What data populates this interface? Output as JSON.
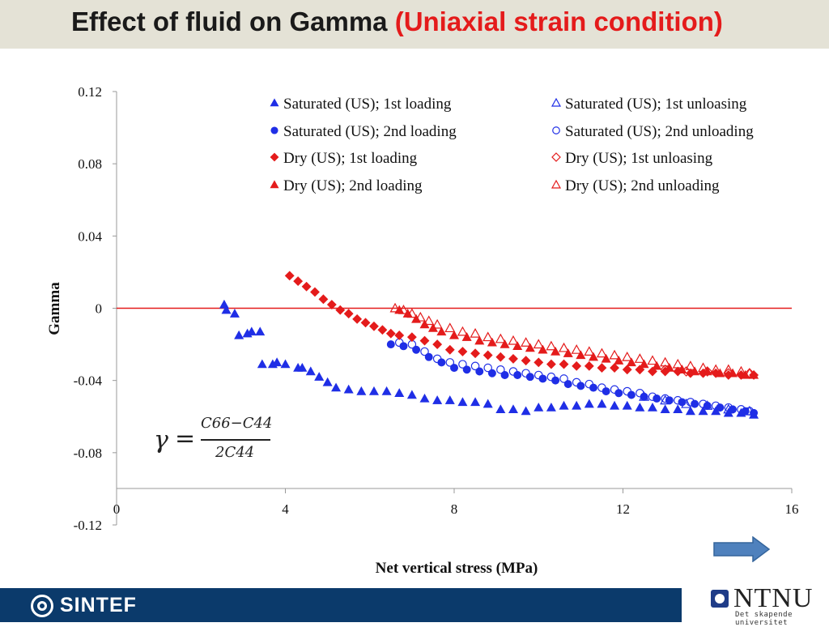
{
  "slide": {
    "title_main": "Effect of fluid on Gamma ",
    "title_sub": "(Uniaxial strain condition)"
  },
  "formula": {
    "lhs": "γ",
    "eq": "=",
    "numerator": "C66−C44",
    "denominator": "2C44"
  },
  "logos": {
    "sintef": "SINTEF",
    "ntnu_name": "NTNU",
    "ntnu_tagline": "Det skapende universitet"
  },
  "nav": {
    "icon": "right-arrow-icon",
    "color": "#4f81bd"
  },
  "chart_data": {
    "type": "scatter",
    "title": "",
    "xlabel": "Net vertical stress (MPa)",
    "ylabel": "Gamma",
    "xlim": [
      0,
      16
    ],
    "ylim": [
      -0.12,
      0.12
    ],
    "x_ticks": [
      0,
      4,
      8,
      12,
      16
    ],
    "x_tick_labels": [
      "0",
      "4",
      "8",
      "12",
      "16"
    ],
    "y_ticks": [
      0.12,
      0.08,
      0.04,
      0,
      -0.04,
      -0.08,
      -0.12
    ],
    "y_tick_labels": [
      "0.12",
      "0.08",
      "0.04",
      "0",
      "-0.04",
      "-0.08",
      "-0.12"
    ],
    "reference_line": {
      "y": 0,
      "color": "#e41b1b"
    },
    "grid": false,
    "legend_position": "top-right",
    "series": [
      {
        "name": "Saturated (US); 1st loading",
        "marker": "triangle",
        "filled": true,
        "color": "#1f2ee6",
        "points": [
          [
            2.55,
            0.002
          ],
          [
            2.6,
            -0.001
          ],
          [
            2.8,
            -0.003
          ],
          [
            2.9,
            -0.015
          ],
          [
            3.1,
            -0.014
          ],
          [
            3.2,
            -0.013
          ],
          [
            3.4,
            -0.013
          ],
          [
            3.45,
            -0.031
          ],
          [
            3.7,
            -0.031
          ],
          [
            3.8,
            -0.03
          ],
          [
            4.0,
            -0.031
          ],
          [
            4.3,
            -0.033
          ],
          [
            4.4,
            -0.033
          ],
          [
            4.6,
            -0.035
          ],
          [
            4.8,
            -0.038
          ],
          [
            5.0,
            -0.041
          ],
          [
            5.2,
            -0.044
          ],
          [
            5.5,
            -0.045
          ],
          [
            5.8,
            -0.046
          ],
          [
            6.1,
            -0.046
          ],
          [
            6.4,
            -0.046
          ],
          [
            6.7,
            -0.047
          ],
          [
            7.0,
            -0.048
          ],
          [
            7.3,
            -0.05
          ],
          [
            7.6,
            -0.051
          ],
          [
            7.9,
            -0.051
          ],
          [
            8.2,
            -0.052
          ],
          [
            8.5,
            -0.052
          ],
          [
            8.8,
            -0.053
          ],
          [
            9.1,
            -0.056
          ],
          [
            9.4,
            -0.056
          ],
          [
            9.7,
            -0.057
          ],
          [
            10.0,
            -0.055
          ],
          [
            10.3,
            -0.055
          ],
          [
            10.6,
            -0.054
          ],
          [
            10.9,
            -0.054
          ],
          [
            11.2,
            -0.053
          ],
          [
            11.5,
            -0.053
          ],
          [
            11.8,
            -0.054
          ],
          [
            12.1,
            -0.054
          ],
          [
            12.4,
            -0.055
          ],
          [
            12.7,
            -0.055
          ],
          [
            13.0,
            -0.056
          ],
          [
            13.3,
            -0.056
          ],
          [
            13.6,
            -0.057
          ],
          [
            13.9,
            -0.057
          ],
          [
            14.2,
            -0.057
          ],
          [
            14.5,
            -0.058
          ],
          [
            14.8,
            -0.058
          ],
          [
            15.1,
            -0.059
          ]
        ]
      },
      {
        "name": "Saturated (US); 2nd loading",
        "marker": "circle",
        "filled": true,
        "color": "#1f2ee6",
        "points": [
          [
            6.5,
            -0.02
          ],
          [
            6.8,
            -0.021
          ],
          [
            7.1,
            -0.023
          ],
          [
            7.4,
            -0.027
          ],
          [
            7.7,
            -0.03
          ],
          [
            8.0,
            -0.033
          ],
          [
            8.3,
            -0.034
          ],
          [
            8.6,
            -0.035
          ],
          [
            8.9,
            -0.036
          ],
          [
            9.2,
            -0.037
          ],
          [
            9.5,
            -0.037
          ],
          [
            9.8,
            -0.038
          ],
          [
            10.1,
            -0.039
          ],
          [
            10.4,
            -0.04
          ],
          [
            10.7,
            -0.042
          ],
          [
            11.0,
            -0.043
          ],
          [
            11.3,
            -0.044
          ],
          [
            11.6,
            -0.046
          ],
          [
            11.9,
            -0.047
          ],
          [
            12.2,
            -0.048
          ],
          [
            12.5,
            -0.049
          ],
          [
            12.8,
            -0.05
          ],
          [
            13.1,
            -0.051
          ],
          [
            13.4,
            -0.052
          ],
          [
            13.7,
            -0.053
          ],
          [
            14.0,
            -0.054
          ],
          [
            14.3,
            -0.055
          ],
          [
            14.6,
            -0.056
          ],
          [
            14.9,
            -0.057
          ],
          [
            15.1,
            -0.058
          ]
        ]
      },
      {
        "name": "Dry (US); 1st loading",
        "marker": "diamond",
        "filled": true,
        "color": "#e41b1b",
        "points": [
          [
            4.1,
            0.018
          ],
          [
            4.3,
            0.015
          ],
          [
            4.5,
            0.012
          ],
          [
            4.7,
            0.009
          ],
          [
            4.9,
            0.005
          ],
          [
            5.1,
            0.002
          ],
          [
            5.3,
            -0.001
          ],
          [
            5.5,
            -0.003
          ],
          [
            5.7,
            -0.006
          ],
          [
            5.9,
            -0.008
          ],
          [
            6.1,
            -0.01
          ],
          [
            6.3,
            -0.012
          ],
          [
            6.5,
            -0.014
          ],
          [
            6.7,
            -0.015
          ],
          [
            7.0,
            -0.016
          ],
          [
            7.3,
            -0.018
          ],
          [
            7.6,
            -0.02
          ],
          [
            7.9,
            -0.023
          ],
          [
            8.2,
            -0.024
          ],
          [
            8.5,
            -0.025
          ],
          [
            8.8,
            -0.026
          ],
          [
            9.1,
            -0.027
          ],
          [
            9.4,
            -0.028
          ],
          [
            9.7,
            -0.029
          ],
          [
            10.0,
            -0.03
          ],
          [
            10.3,
            -0.031
          ],
          [
            10.6,
            -0.031
          ],
          [
            10.9,
            -0.032
          ],
          [
            11.2,
            -0.032
          ],
          [
            11.5,
            -0.033
          ],
          [
            11.8,
            -0.033
          ],
          [
            12.1,
            -0.034
          ],
          [
            12.4,
            -0.034
          ],
          [
            12.7,
            -0.035
          ],
          [
            13.0,
            -0.035
          ],
          [
            13.3,
            -0.035
          ],
          [
            13.6,
            -0.036
          ],
          [
            13.9,
            -0.036
          ],
          [
            14.2,
            -0.036
          ],
          [
            14.5,
            -0.037
          ],
          [
            14.8,
            -0.037
          ],
          [
            15.1,
            -0.037
          ]
        ]
      },
      {
        "name": "Dry (US); 2nd loading",
        "marker": "triangle",
        "filled": true,
        "color": "#e41b1b",
        "points": [
          [
            6.7,
            -0.001
          ],
          [
            6.9,
            -0.003
          ],
          [
            7.1,
            -0.006
          ],
          [
            7.3,
            -0.009
          ],
          [
            7.5,
            -0.011
          ],
          [
            7.7,
            -0.013
          ],
          [
            8.0,
            -0.015
          ],
          [
            8.3,
            -0.016
          ],
          [
            8.6,
            -0.018
          ],
          [
            8.9,
            -0.019
          ],
          [
            9.2,
            -0.02
          ],
          [
            9.5,
            -0.021
          ],
          [
            9.8,
            -0.022
          ],
          [
            10.1,
            -0.023
          ],
          [
            10.4,
            -0.024
          ],
          [
            10.7,
            -0.025
          ],
          [
            11.0,
            -0.026
          ],
          [
            11.3,
            -0.027
          ],
          [
            11.6,
            -0.028
          ],
          [
            11.9,
            -0.029
          ],
          [
            12.2,
            -0.03
          ],
          [
            12.5,
            -0.031
          ],
          [
            12.8,
            -0.032
          ],
          [
            13.1,
            -0.033
          ],
          [
            13.4,
            -0.034
          ],
          [
            13.7,
            -0.035
          ],
          [
            14.0,
            -0.035
          ],
          [
            14.3,
            -0.036
          ],
          [
            14.6,
            -0.036
          ],
          [
            14.9,
            -0.037
          ],
          [
            15.1,
            -0.037
          ]
        ]
      },
      {
        "name": "Saturated (US); 1st unloasing",
        "marker": "triangle",
        "filled": false,
        "color": "#1f2ee6",
        "points": [
          [
            12.5,
            -0.049
          ],
          [
            13.0,
            -0.051
          ],
          [
            13.5,
            -0.053
          ],
          [
            14.0,
            -0.054
          ],
          [
            14.5,
            -0.056
          ],
          [
            15.0,
            -0.057
          ]
        ]
      },
      {
        "name": "Saturated (US); 2nd unloading",
        "marker": "circle",
        "filled": false,
        "color": "#1f2ee6",
        "points": [
          [
            6.7,
            -0.019
          ],
          [
            7.0,
            -0.02
          ],
          [
            7.3,
            -0.024
          ],
          [
            7.6,
            -0.028
          ],
          [
            7.9,
            -0.03
          ],
          [
            8.2,
            -0.031
          ],
          [
            8.5,
            -0.032
          ],
          [
            8.8,
            -0.033
          ],
          [
            9.1,
            -0.034
          ],
          [
            9.4,
            -0.035
          ],
          [
            9.7,
            -0.036
          ],
          [
            10.0,
            -0.037
          ],
          [
            10.3,
            -0.038
          ],
          [
            10.6,
            -0.039
          ],
          [
            10.9,
            -0.041
          ],
          [
            11.2,
            -0.042
          ],
          [
            11.5,
            -0.044
          ],
          [
            11.8,
            -0.045
          ],
          [
            12.1,
            -0.046
          ],
          [
            12.4,
            -0.047
          ],
          [
            12.7,
            -0.049
          ],
          [
            13.0,
            -0.05
          ],
          [
            13.3,
            -0.051
          ],
          [
            13.6,
            -0.052
          ],
          [
            13.9,
            -0.053
          ],
          [
            14.2,
            -0.054
          ],
          [
            14.5,
            -0.055
          ],
          [
            14.8,
            -0.056
          ],
          [
            15.0,
            -0.057
          ]
        ]
      },
      {
        "name": "Dry (US); 1st unloasing",
        "marker": "diamond",
        "filled": false,
        "color": "#e41b1b",
        "points": [
          [
            13.0,
            -0.034
          ],
          [
            13.5,
            -0.035
          ],
          [
            14.0,
            -0.035
          ],
          [
            14.5,
            -0.036
          ],
          [
            15.0,
            -0.036
          ]
        ]
      },
      {
        "name": "Dry (US); 2nd unloading",
        "marker": "triangle",
        "filled": false,
        "color": "#e41b1b",
        "points": [
          [
            6.6,
            0.0
          ],
          [
            6.8,
            -0.001
          ],
          [
            7.0,
            -0.003
          ],
          [
            7.2,
            -0.005
          ],
          [
            7.4,
            -0.007
          ],
          [
            7.6,
            -0.009
          ],
          [
            7.9,
            -0.011
          ],
          [
            8.2,
            -0.013
          ],
          [
            8.5,
            -0.014
          ],
          [
            8.8,
            -0.016
          ],
          [
            9.1,
            -0.017
          ],
          [
            9.4,
            -0.018
          ],
          [
            9.7,
            -0.019
          ],
          [
            10.0,
            -0.02
          ],
          [
            10.3,
            -0.021
          ],
          [
            10.6,
            -0.022
          ],
          [
            10.9,
            -0.023
          ],
          [
            11.2,
            -0.024
          ],
          [
            11.5,
            -0.025
          ],
          [
            11.8,
            -0.026
          ],
          [
            12.1,
            -0.027
          ],
          [
            12.4,
            -0.028
          ],
          [
            12.7,
            -0.029
          ],
          [
            13.0,
            -0.03
          ],
          [
            13.3,
            -0.031
          ],
          [
            13.6,
            -0.032
          ],
          [
            13.9,
            -0.033
          ],
          [
            14.2,
            -0.034
          ],
          [
            14.5,
            -0.034
          ],
          [
            14.8,
            -0.035
          ],
          [
            15.0,
            -0.036
          ]
        ]
      }
    ]
  }
}
